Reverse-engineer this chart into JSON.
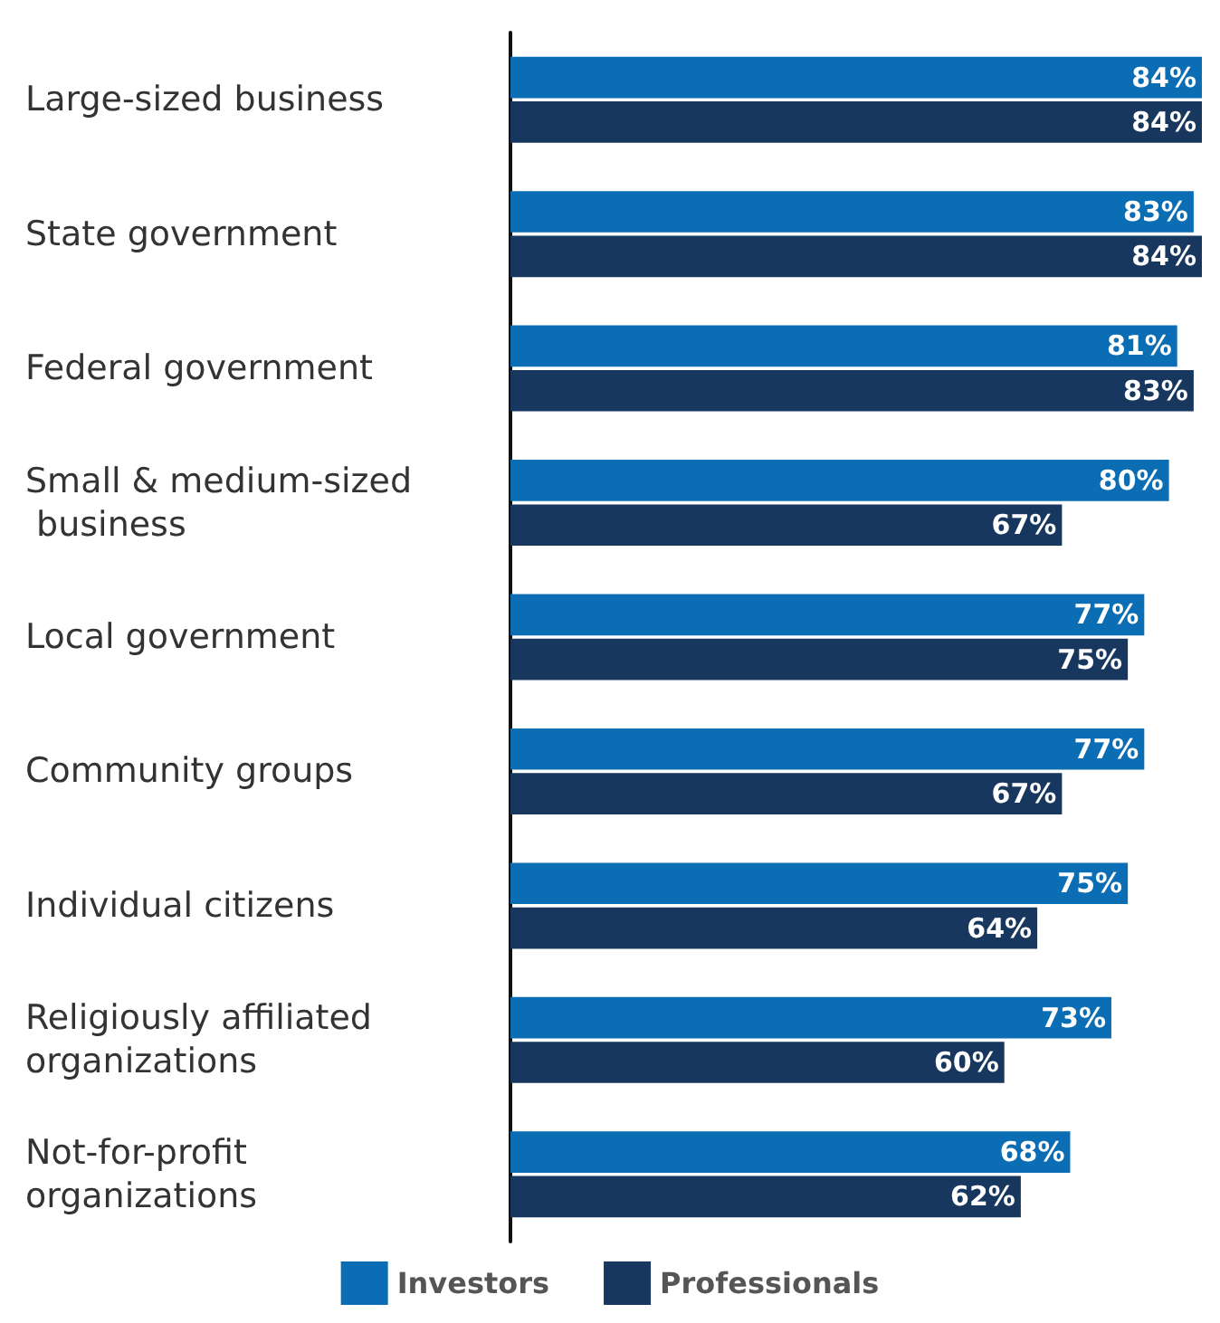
{
  "chart_data": {
    "type": "bar",
    "orientation": "horizontal",
    "categories": [
      "Large-sized business",
      "State government",
      "Federal government",
      "Small & medium-sized business",
      "Local government",
      "Community groups",
      "Individual citizens",
      "Religiously affiliated organizations",
      "Not-for-profit organizations"
    ],
    "series": [
      {
        "name": "Investors",
        "color": "#0b6db3",
        "values": [
          84,
          83,
          81,
          80,
          77,
          77,
          75,
          73,
          68
        ],
        "value_labels": [
          "84%",
          "83%",
          "81%",
          "80%",
          "77%",
          "77%",
          "75%",
          "73%",
          "68%"
        ]
      },
      {
        "name": "Professionals",
        "color": "#17375e",
        "values": [
          84,
          84,
          83,
          67,
          75,
          67,
          64,
          60,
          62
        ],
        "value_labels": [
          "84%",
          "84%",
          "83%",
          "67%",
          "75%",
          "67%",
          "64%",
          "60%",
          "62%"
        ]
      }
    ],
    "legend": "bottom",
    "grid": false
  }
}
